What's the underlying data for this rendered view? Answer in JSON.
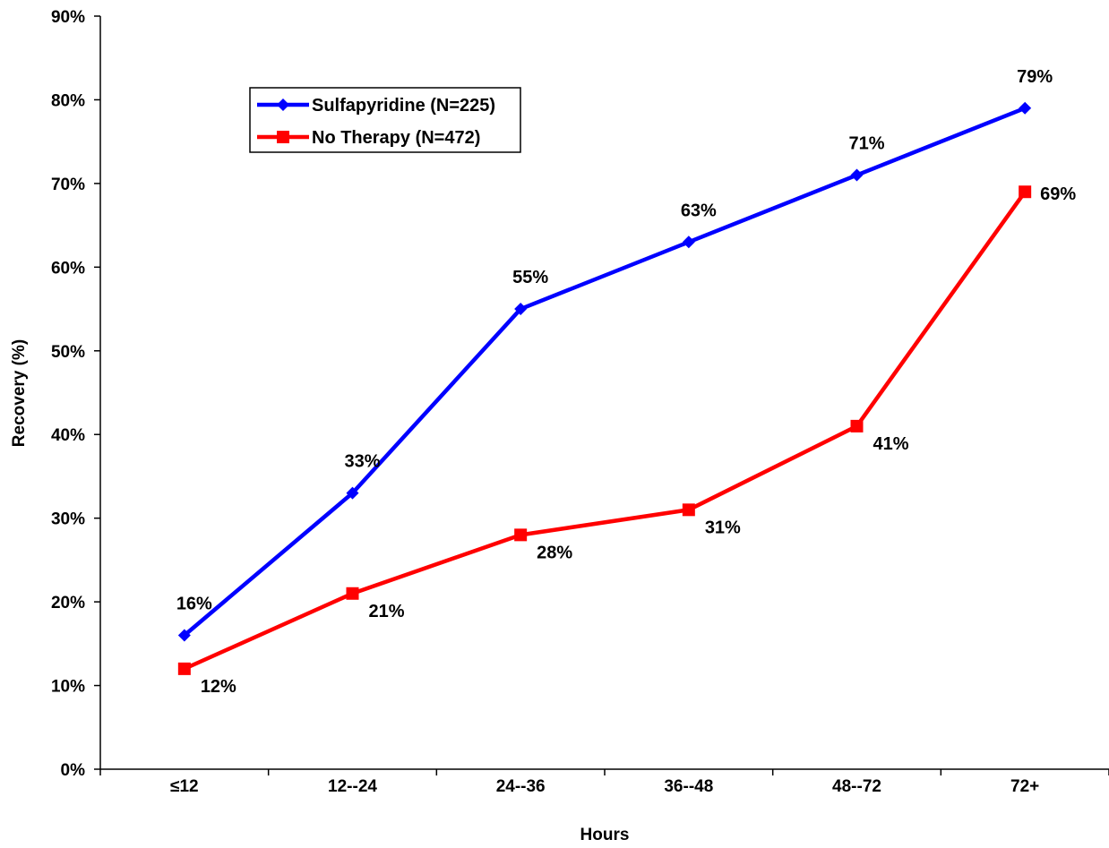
{
  "chart_data": {
    "type": "line",
    "title": "",
    "xlabel": "Hours",
    "ylabel": "Recovery (%)",
    "categories": [
      "≤12",
      "12--24",
      "24--36",
      "36--48",
      "48--72",
      "72+"
    ],
    "ylim": [
      0,
      90
    ],
    "yticks": [
      "0%",
      "10%",
      "20%",
      "30%",
      "40%",
      "50%",
      "60%",
      "70%",
      "80%",
      "90%"
    ],
    "grid": false,
    "legend_position": "top-left",
    "series": [
      {
        "name": "Sulfapyridine (N=225)",
        "color": "#0000ff",
        "marker": "diamond",
        "values": [
          16,
          33,
          55,
          63,
          71,
          79
        ],
        "labels": [
          "16%",
          "33%",
          "55%",
          "63%",
          "71%",
          "79%"
        ]
      },
      {
        "name": "No Therapy (N=472)",
        "color": "#ff0000",
        "marker": "square",
        "values": [
          12,
          21,
          28,
          31,
          41,
          69
        ],
        "labels": [
          "12%",
          "21%",
          "28%",
          "31%",
          "41%",
          "69%"
        ]
      }
    ]
  }
}
